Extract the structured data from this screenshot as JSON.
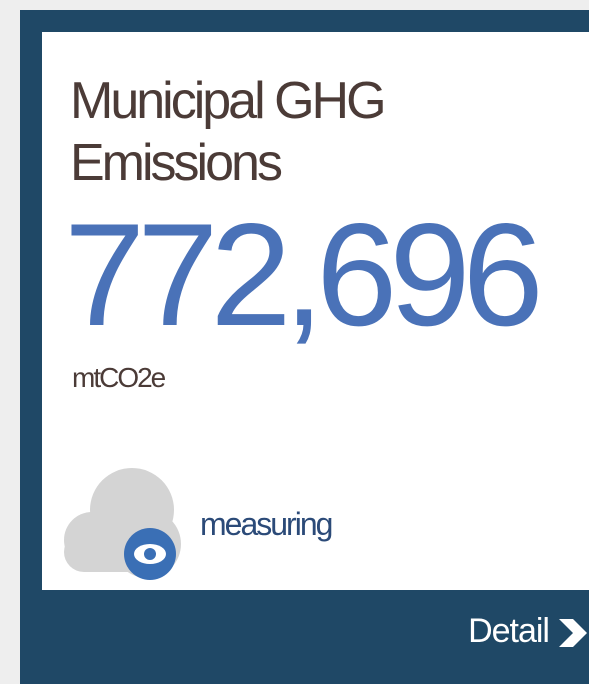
{
  "widget": {
    "title_line1": "Municipal GHG",
    "title_line2": "Emissions",
    "value": "772,696",
    "unit": "mtCO2e",
    "status": "measuring",
    "link": "Detail"
  }
}
